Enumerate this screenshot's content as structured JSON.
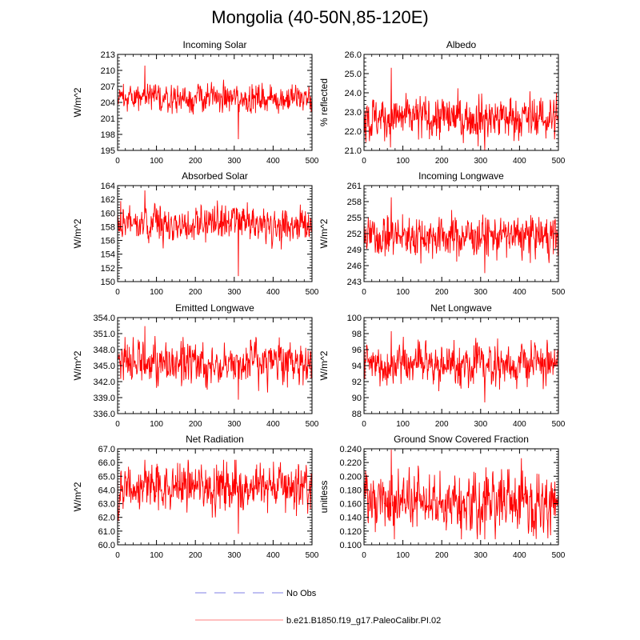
{
  "title": "Mongolia (40-50N,85-120E)",
  "legend": {
    "obs_label": "No Obs",
    "obs_color": "#aaaaee",
    "model_label": "b.e21.B1850.f19_g17.PaleoCalibr.PI.02",
    "model_color": "#ff0000"
  },
  "line_color": "#ff0000",
  "chart_data": [
    {
      "type": "line",
      "title": "Incoming Solar",
      "ylabel": "W/m^2",
      "xlim": [
        0,
        500
      ],
      "ylim": [
        195,
        213
      ],
      "xticks": [
        0,
        100,
        200,
        300,
        400,
        500
      ],
      "yticks": [
        195,
        198,
        201,
        204,
        207,
        210,
        213
      ],
      "ydec": 0,
      "series": {
        "name": "b.e21.B1850.f19_g17.PaleoCalibr.PI.02",
        "n": 500,
        "mean": 204.8,
        "sd": 1.3,
        "max": 210.9,
        "min": 197.1
      }
    },
    {
      "type": "line",
      "title": "Albedo",
      "ylabel": "% reflected",
      "xlim": [
        0,
        500
      ],
      "ylim": [
        21.0,
        26.0
      ],
      "xticks": [
        0,
        100,
        200,
        300,
        400,
        500
      ],
      "yticks": [
        21.0,
        22.0,
        23.0,
        24.0,
        25.0,
        26.0
      ],
      "ydec": 1,
      "series": {
        "name": "b.e21.B1850.f19_g17.PaleoCalibr.PI.02",
        "n": 500,
        "mean": 22.7,
        "sd": 0.55,
        "max": 25.3,
        "min": 21.0
      }
    },
    {
      "type": "line",
      "title": "Absorbed Solar",
      "ylabel": "W/m^2",
      "xlim": [
        0,
        500
      ],
      "ylim": [
        150,
        164
      ],
      "xticks": [
        0,
        100,
        200,
        300,
        400,
        500
      ],
      "yticks": [
        150,
        152,
        154,
        156,
        158,
        160,
        162,
        164
      ],
      "ydec": 0,
      "series": {
        "name": "b.e21.B1850.f19_g17.PaleoCalibr.PI.02",
        "n": 500,
        "mean": 158.4,
        "sd": 1.3,
        "max": 163.3,
        "min": 150.8
      }
    },
    {
      "type": "line",
      "title": "Incoming Longwave",
      "ylabel": "W/m^2",
      "xlim": [
        0,
        500
      ],
      "ylim": [
        243,
        261
      ],
      "xticks": [
        0,
        100,
        200,
        300,
        400,
        500
      ],
      "yticks": [
        243,
        246,
        249,
        252,
        255,
        258,
        261
      ],
      "ydec": 0,
      "series": {
        "name": "b.e21.B1850.f19_g17.PaleoCalibr.PI.02",
        "n": 500,
        "mean": 251.5,
        "sd": 1.9,
        "max": 258.8,
        "min": 244.6
      }
    },
    {
      "type": "line",
      "title": "Emitted Longwave",
      "ylabel": "W/m^2",
      "xlim": [
        0,
        500
      ],
      "ylim": [
        336.0,
        354.0
      ],
      "xticks": [
        0,
        100,
        200,
        300,
        400,
        500
      ],
      "yticks": [
        336.0,
        339.0,
        342.0,
        345.0,
        348.0,
        351.0,
        354.0
      ],
      "ydec": 1,
      "series": {
        "name": "b.e21.B1850.f19_g17.PaleoCalibr.PI.02",
        "n": 500,
        "mean": 345.5,
        "sd": 2.0,
        "max": 352.4,
        "min": 338.6
      }
    },
    {
      "type": "line",
      "title": "Net Longwave",
      "ylabel": "W/m^2",
      "xlim": [
        0,
        500
      ],
      "ylim": [
        88,
        100
      ],
      "xticks": [
        0,
        100,
        200,
        300,
        400,
        500
      ],
      "yticks": [
        88,
        90,
        92,
        94,
        96,
        98,
        100
      ],
      "ydec": 0,
      "series": {
        "name": "b.e21.B1850.f19_g17.PaleoCalibr.PI.02",
        "n": 500,
        "mean": 94.2,
        "sd": 1.3,
        "max": 98.3,
        "min": 89.4
      }
    },
    {
      "type": "line",
      "title": "Net Radiation",
      "ylabel": "W/m^2",
      "xlim": [
        0,
        500
      ],
      "ylim": [
        60.0,
        67.0
      ],
      "xticks": [
        0,
        100,
        200,
        300,
        400,
        500
      ],
      "yticks": [
        60.0,
        61.0,
        62.0,
        63.0,
        64.0,
        65.0,
        66.0,
        67.0
      ],
      "ydec": 1,
      "series": {
        "name": "b.e21.B1850.f19_g17.PaleoCalibr.PI.02",
        "n": 500,
        "mean": 64.2,
        "sd": 0.85,
        "max": 66.2,
        "min": 60.8
      }
    },
    {
      "type": "line",
      "title": "Ground Snow Covered Fraction",
      "ylabel": "unitless",
      "xlim": [
        0,
        500
      ],
      "ylim": [
        0.1,
        0.24
      ],
      "xticks": [
        0,
        100,
        200,
        300,
        400,
        500
      ],
      "yticks": [
        0.1,
        0.12,
        0.14,
        0.16,
        0.18,
        0.2,
        0.22,
        0.24
      ],
      "ydec": 3,
      "series": {
        "name": "b.e21.B1850.f19_g17.PaleoCalibr.PI.02",
        "n": 500,
        "mean": 0.162,
        "sd": 0.022,
        "max": 0.239,
        "min": 0.108
      }
    }
  ]
}
